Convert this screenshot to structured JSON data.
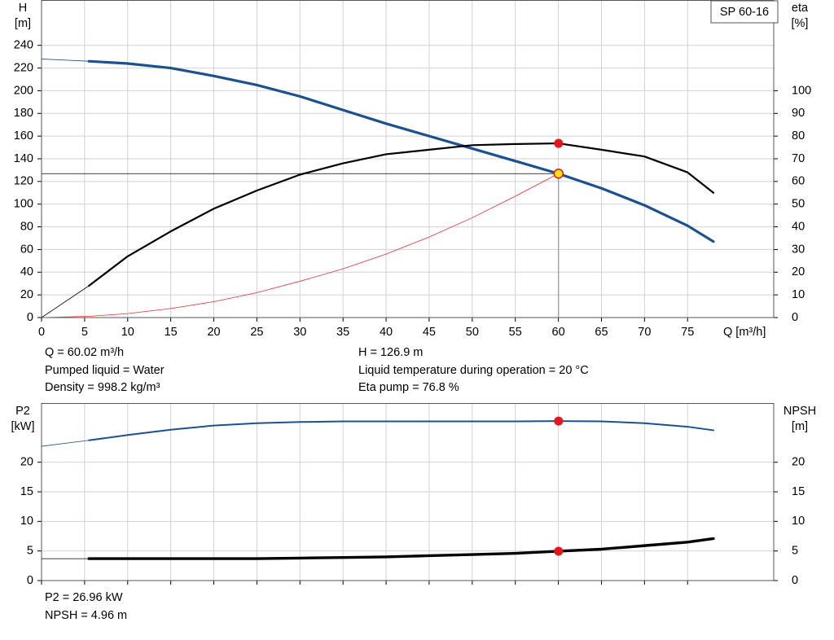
{
  "chart_data": [
    {
      "type": "line",
      "title": "SP 60-16",
      "xlabel": "Q [m³/h]",
      "ylabel": "H",
      "yunit": "[m]",
      "y2label": "eta",
      "y2unit": "[%]",
      "x": [
        0,
        5.5,
        10,
        15,
        20,
        25,
        30,
        35,
        40,
        45,
        50,
        55,
        60,
        65,
        70,
        75,
        78
      ],
      "xlim": [
        0,
        85
      ],
      "xticks": [
        0,
        5,
        10,
        15,
        20,
        25,
        30,
        35,
        40,
        45,
        50,
        55,
        60,
        65,
        70,
        75
      ],
      "show_xtick_labels": true,
      "ylim": [
        0,
        280
      ],
      "yticks": [
        0,
        20,
        40,
        60,
        80,
        100,
        120,
        140,
        160,
        180,
        200,
        220,
        240
      ],
      "y2lim": [
        0,
        140
      ],
      "y2ticks": [
        0,
        10,
        20,
        30,
        40,
        50,
        60,
        70,
        80,
        90,
        100
      ],
      "grid": true,
      "series": [
        {
          "color": "#1c5190",
          "width": 3.2,
          "values": [
            null,
            226,
            224,
            220,
            213,
            205,
            195,
            183,
            171,
            160,
            149,
            138,
            126.9,
            114,
            99,
            81,
            67
          ]
        },
        {
          "color": "#1c5190",
          "width": 0.8,
          "values": [
            228,
            226,
            null,
            null,
            null,
            null,
            null,
            null,
            null,
            null,
            null,
            null,
            null,
            null,
            null,
            null,
            null
          ]
        },
        {
          "color": "#000000",
          "width": 2.2,
          "axis": "y2",
          "values": [
            null,
            14,
            27,
            38,
            48,
            56,
            63,
            68,
            72,
            74,
            76,
            76.5,
            76.8,
            74,
            71,
            64,
            55
          ]
        },
        {
          "color": "#000000",
          "width": 0.8,
          "axis": "y2",
          "values": [
            0,
            14,
            null,
            null,
            null,
            null,
            null,
            null,
            null,
            null,
            null,
            null,
            null,
            null,
            null,
            null,
            null
          ]
        },
        {
          "color": "#e83030",
          "width": 0.8,
          "values": [
            0,
            1.1,
            3.5,
            8,
            14,
            22,
            32,
            43,
            56,
            71,
            88,
            107,
            126.9,
            null,
            null,
            null,
            null
          ]
        }
      ],
      "operating_point": {
        "q": 60.02,
        "h": 126.9,
        "eta": 76.8
      },
      "annotations": [
        "Q = 60.02 m³/h",
        "Pumped liquid = Water",
        "Density = 998.2 kg/m³",
        "H = 126.9 m",
        "Liquid temperature during operation = 20 °C",
        "Eta pump = 76.8 %"
      ]
    },
    {
      "type": "line",
      "ylabel": "P2",
      "yunit": "[kW]",
      "y2label": "NPSH",
      "y2unit": "[m]",
      "x": [
        0,
        5.5,
        10,
        15,
        20,
        25,
        30,
        35,
        40,
        45,
        50,
        55,
        60,
        65,
        70,
        75,
        78
      ],
      "xlim": [
        0,
        85
      ],
      "xticks": [
        0,
        5,
        10,
        15,
        20,
        25,
        30,
        35,
        40,
        45,
        50,
        55,
        60,
        65,
        70,
        75
      ],
      "show_xtick_labels": false,
      "ylim": [
        0,
        30
      ],
      "yticks": [
        0,
        5,
        10,
        15,
        20
      ],
      "y2lim": [
        0,
        30
      ],
      "y2ticks": [
        0,
        5,
        10,
        15,
        20
      ],
      "grid": true,
      "series": [
        {
          "color": "#1c5190",
          "width": 2,
          "values": [
            null,
            23.7,
            24.6,
            25.5,
            26.2,
            26.6,
            26.8,
            26.9,
            26.9,
            26.9,
            26.9,
            26.9,
            26.96,
            26.9,
            26.6,
            26.0,
            25.4
          ]
        },
        {
          "color": "#1c5190",
          "width": 0.8,
          "values": [
            22.7,
            23.7,
            null,
            null,
            null,
            null,
            null,
            null,
            null,
            null,
            null,
            null,
            null,
            null,
            null,
            null,
            null
          ]
        },
        {
          "color": "#000000",
          "width": 3.4,
          "axis": "y2",
          "values": [
            null,
            3.7,
            3.7,
            3.7,
            3.7,
            3.7,
            3.8,
            3.9,
            4.0,
            4.2,
            4.4,
            4.6,
            4.96,
            5.3,
            5.9,
            6.5,
            7.1
          ]
        },
        {
          "color": "#000000",
          "width": 0.8,
          "axis": "y2",
          "values": [
            3.7,
            3.7,
            null,
            null,
            null,
            null,
            null,
            null,
            null,
            null,
            null,
            null,
            null,
            null,
            null,
            null,
            null
          ]
        }
      ],
      "operating_point": {
        "q": 60.02,
        "p2": 26.96,
        "npsh": 4.96
      },
      "annotations": [
        "P2 = 26.96 kW",
        "NPSH = 4.96 m"
      ]
    }
  ]
}
